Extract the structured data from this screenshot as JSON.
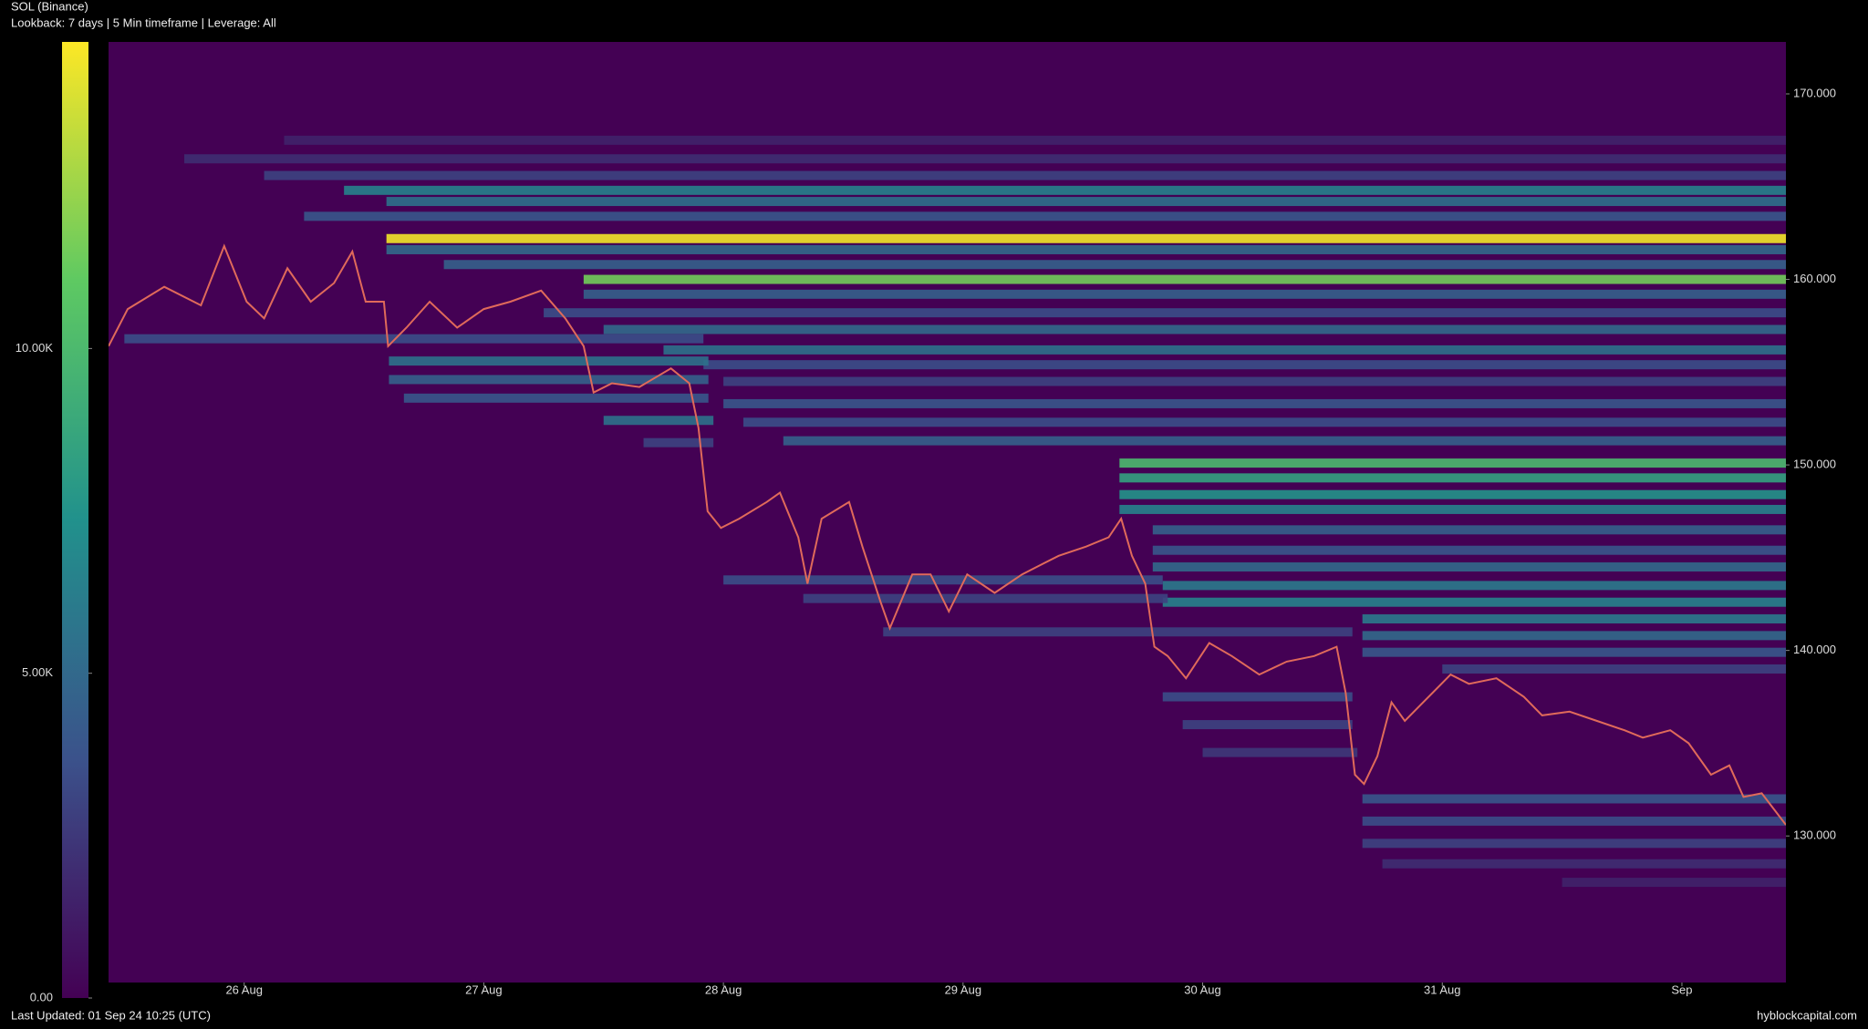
{
  "chart_data": {
    "type": "heatmap",
    "title": "SOL (Binance)",
    "subtitle": "Lookback: 7 days | 5 Min timeframe | Leverage: All",
    "footer": "Last Updated: 01 Sep 24 10:25 (UTC)",
    "source": "hyblockcapital.com",
    "xlim": [
      "2024-08-25T10:25",
      "2024-09-01T10:25"
    ],
    "xticks": [
      {
        "value": "2024-08-26T00:00",
        "label": "26 Aug"
      },
      {
        "value": "2024-08-27T00:00",
        "label": "27 Aug"
      },
      {
        "value": "2024-08-28T00:00",
        "label": "28 Aug"
      },
      {
        "value": "2024-08-29T00:00",
        "label": "29 Aug"
      },
      {
        "value": "2024-08-30T00:00",
        "label": "30 Aug"
      },
      {
        "value": "2024-08-31T00:00",
        "label": "31 Aug"
      },
      {
        "value": "2024-09-01T00:00",
        "label": "Sep"
      }
    ],
    "ylim": [
      122.1,
      172.8
    ],
    "yticks": [
      {
        "value": 130,
        "label": "130.000"
      },
      {
        "value": 140,
        "label": "140.000"
      },
      {
        "value": 150,
        "label": "150.000"
      },
      {
        "value": 160,
        "label": "160.000"
      },
      {
        "value": 170,
        "label": "170.000"
      }
    ],
    "clim": [
      0,
      14720
    ],
    "cticks": [
      {
        "value": 0,
        "label": "0.00"
      },
      {
        "value": 5000,
        "label": "5.00K"
      },
      {
        "value": 10000,
        "label": "10.00K"
      }
    ],
    "price": {
      "color": "#e06a5a",
      "x": [
        "2024-08-25T10:25",
        "2024-08-25T12:20",
        "2024-08-25T16:00",
        "2024-08-25T19:40",
        "2024-08-25T22:00",
        "2024-08-26T00:15",
        "2024-08-26T02:00",
        "2024-08-26T04:20",
        "2024-08-26T06:40",
        "2024-08-26T09:00",
        "2024-08-26T10:50",
        "2024-08-26T12:10",
        "2024-08-26T14:00",
        "2024-08-26T14:25",
        "2024-08-26T16:15",
        "2024-08-26T18:35",
        "2024-08-26T21:20",
        "2024-08-27T00:00",
        "2024-08-27T02:40",
        "2024-08-27T05:45",
        "2024-08-27T08:10",
        "2024-08-27T10:00",
        "2024-08-27T11:00",
        "2024-08-27T12:50",
        "2024-08-27T15:35",
        "2024-08-27T18:45",
        "2024-08-27T20:35",
        "2024-08-27T21:30",
        "2024-08-27T22:25",
        "2024-08-27T23:45",
        "2024-08-28T01:35",
        "2024-08-28T04:20",
        "2024-08-28T05:40",
        "2024-08-28T07:30",
        "2024-08-28T08:25",
        "2024-08-28T09:50",
        "2024-08-28T12:35",
        "2024-08-28T13:55",
        "2024-08-28T15:45",
        "2024-08-28T16:40",
        "2024-08-28T18:55",
        "2024-08-28T20:45",
        "2024-08-28T22:35",
        "2024-08-29T00:25",
        "2024-08-29T03:10",
        "2024-08-29T05:55",
        "2024-08-29T09:35",
        "2024-08-29T12:20",
        "2024-08-29T14:35",
        "2024-08-29T15:50",
        "2024-08-29T16:55",
        "2024-08-29T18:15",
        "2024-08-29T19:10",
        "2024-08-29T20:30",
        "2024-08-29T22:20",
        "2024-08-30T00:40",
        "2024-08-30T02:55",
        "2024-08-30T05:40",
        "2024-08-30T08:25",
        "2024-08-30T11:10",
        "2024-08-30T13:25",
        "2024-08-30T14:20",
        "2024-08-30T15:15",
        "2024-08-30T16:10",
        "2024-08-30T17:30",
        "2024-08-30T18:55",
        "2024-08-30T20:15",
        "2024-08-30T22:05",
        "2024-08-31T00:50",
        "2024-08-31T02:40",
        "2024-08-31T05:25",
        "2024-08-31T08:10",
        "2024-08-31T10:00",
        "2024-08-31T12:45",
        "2024-08-31T15:30",
        "2024-08-31T18:15",
        "2024-08-31T20:05",
        "2024-08-31T22:50",
        "2024-09-01T00:40",
        "2024-09-01T02:55",
        "2024-09-01T04:45",
        "2024-09-01T06:10",
        "2024-09-01T08:00",
        "2024-09-01T10:25"
      ],
      "values": [
        156.4,
        158.4,
        159.6,
        158.6,
        161.8,
        158.8,
        157.9,
        160.6,
        158.8,
        159.8,
        161.5,
        158.8,
        158.8,
        156.4,
        157.4,
        158.8,
        157.4,
        158.4,
        158.8,
        159.4,
        157.9,
        156.4,
        153.9,
        154.4,
        154.2,
        155.2,
        154.4,
        152.0,
        147.5,
        146.6,
        147.1,
        148.0,
        148.5,
        146.1,
        143.6,
        147.1,
        148.0,
        145.6,
        142.6,
        141.2,
        144.1,
        144.1,
        142.1,
        144.1,
        143.1,
        144.1,
        145.1,
        145.6,
        146.1,
        147.1,
        145.1,
        143.6,
        140.2,
        139.7,
        138.5,
        140.4,
        139.7,
        138.7,
        139.4,
        139.7,
        140.2,
        137.7,
        133.3,
        132.8,
        134.3,
        137.2,
        136.2,
        137.2,
        138.7,
        138.2,
        138.5,
        137.5,
        136.5,
        136.7,
        136.2,
        135.7,
        135.3,
        135.7,
        135.0,
        133.3,
        133.8,
        132.1,
        132.3,
        130.6
      ]
    },
    "levels": {
      "prices": [
        167.5,
        166.5,
        165.6,
        164.8,
        164.2,
        163.4,
        162.2,
        161.6,
        160.8,
        160.0,
        159.2,
        158.2,
        157.3,
        156.2,
        155.4,
        154.5,
        153.3,
        152.3,
        151.3,
        150.1,
        149.3,
        148.4,
        147.6,
        146.5,
        145.4,
        144.5,
        143.5,
        142.6,
        141.7,
        140.8,
        139.9,
        139.0,
        156.8,
        155.6,
        154.6,
        153.6,
        152.4,
        151.2,
        143.8,
        142.8,
        141.0,
        137.5,
        136.0,
        134.5,
        132.0,
        130.8,
        129.6,
        128.5,
        127.5
      ],
      "starts": [
        "2024-08-26T04:00",
        "2024-08-25T18:00",
        "2024-08-26T02:00",
        "2024-08-26T10:00",
        "2024-08-26T14:15",
        "2024-08-26T06:00",
        "2024-08-26T14:15",
        "2024-08-26T14:15",
        "2024-08-26T20:00",
        "2024-08-27T10:00",
        "2024-08-27T10:00",
        "2024-08-27T06:00",
        "2024-08-27T12:00",
        "2024-08-27T18:00",
        "2024-08-27T22:00",
        "2024-08-28T00:00",
        "2024-08-28T00:00",
        "2024-08-28T02:00",
        "2024-08-28T06:00",
        "2024-08-29T15:40",
        "2024-08-29T15:40",
        "2024-08-29T15:40",
        "2024-08-29T15:40",
        "2024-08-29T19:00",
        "2024-08-29T19:00",
        "2024-08-29T19:00",
        "2024-08-29T20:00",
        "2024-08-29T20:00",
        "2024-08-30T16:00",
        "2024-08-30T16:00",
        "2024-08-30T16:00",
        "2024-08-31T00:00",
        "2024-08-25T12:00",
        "2024-08-26T14:30",
        "2024-08-26T14:30",
        "2024-08-26T16:00",
        "2024-08-27T12:00",
        "2024-08-27T16:00",
        "2024-08-28T00:00",
        "2024-08-28T08:00",
        "2024-08-28T16:00",
        "2024-08-29T20:00",
        "2024-08-29T22:00",
        "2024-08-30T00:00",
        "2024-08-30T16:00",
        "2024-08-30T16:00",
        "2024-08-30T16:00",
        "2024-08-30T18:00",
        "2024-08-31T12:00"
      ],
      "ends": [
        null,
        null,
        null,
        null,
        null,
        null,
        null,
        null,
        null,
        null,
        null,
        null,
        null,
        null,
        null,
        null,
        null,
        null,
        null,
        null,
        null,
        null,
        null,
        null,
        null,
        null,
        null,
        null,
        null,
        null,
        null,
        null,
        "2024-08-27T22:00",
        "2024-08-27T22:30",
        "2024-08-27T22:30",
        "2024-08-27T22:30",
        "2024-08-27T23:00",
        "2024-08-27T23:00",
        "2024-08-29T20:00",
        "2024-08-29T20:30",
        "2024-08-30T15:00",
        "2024-08-30T15:00",
        "2024-08-30T15:00",
        "2024-08-30T15:30",
        null,
        null,
        null,
        null,
        null
      ],
      "values": [
        1500,
        2000,
        3000,
        6500,
        5500,
        4000,
        14500,
        5000,
        4500,
        11500,
        4500,
        3500,
        5000,
        5500,
        3500,
        3000,
        4000,
        3500,
        4500,
        10000,
        8500,
        7500,
        6500,
        4500,
        4000,
        5000,
        6000,
        6500,
        6000,
        5000,
        4000,
        3000,
        3500,
        5500,
        4500,
        4000,
        5500,
        3000,
        3500,
        3000,
        3000,
        3500,
        3000,
        2500,
        4000,
        3500,
        3000,
        2000,
        1500
      ]
    }
  }
}
